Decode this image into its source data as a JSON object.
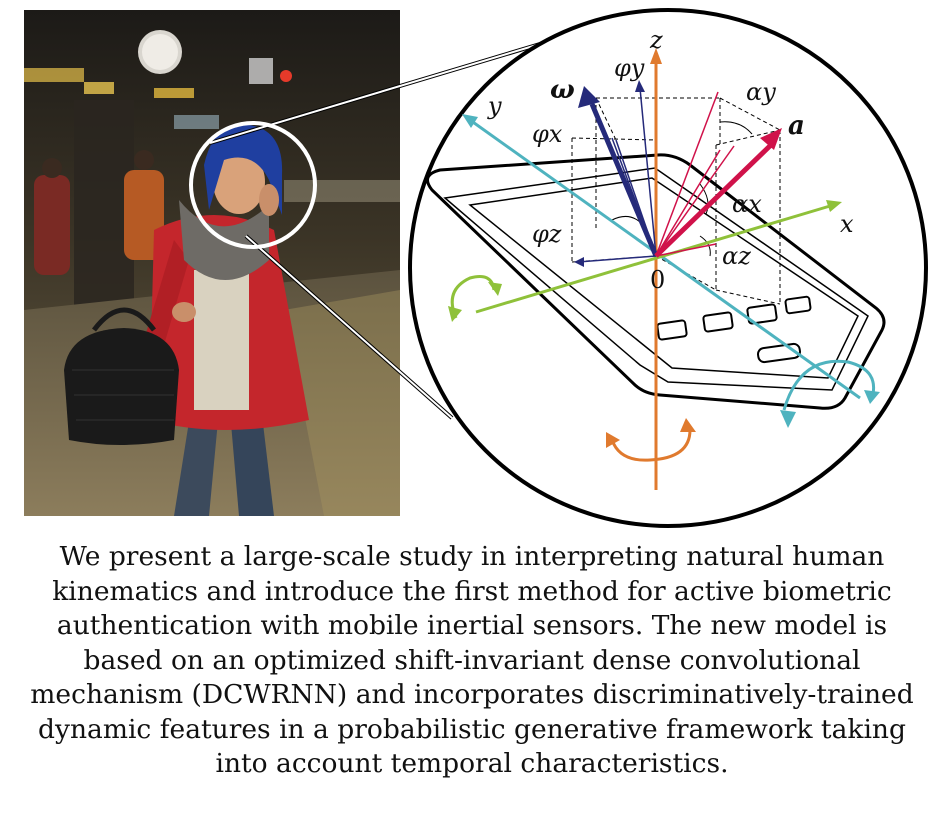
{
  "figure": {
    "labels": {
      "omega": "ω",
      "phi_y": "φy",
      "phi_x": "φx",
      "phi_z": "φz",
      "z": "z",
      "y": "y",
      "x": "x",
      "a": "a",
      "alpha_y": "αy",
      "alpha_x": "αx",
      "alpha_z": "αz",
      "origin": "0"
    },
    "axis_colors": {
      "x": "#8fc13a",
      "y": "#4fb3bf",
      "z": "#e07a2e",
      "omega": "#252a7a",
      "a": "#d0124a"
    }
  },
  "caption": "We present a large-scale study in interpreting natural human kinematics and introduce the first method for active biometric authentication with mobile inertial sensors. The new model is based on an optimized shift-invariant dense convolutional mechanism (DCWRNN) and incorporates discriminatively-trained dynamic features in a probabilistic generative framework taking into account temporal characteristics."
}
